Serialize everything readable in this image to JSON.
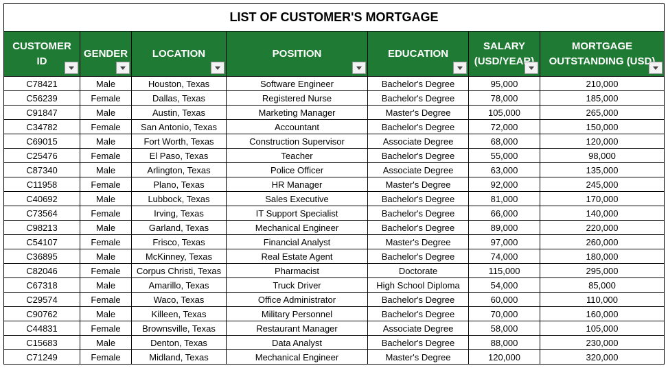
{
  "title": "LIST OF CUSTOMER'S MORTGAGE",
  "table": {
    "headers": [
      "CUSTOMER ID",
      "GENDER",
      "LOCATION",
      "POSITION",
      "EDUCATION",
      "SALARY (USD/YEAR)",
      "MORTGAGE OUTSTANDING (USD)"
    ],
    "rows": [
      [
        "C78421",
        "Male",
        "Houston, Texas",
        "Software Engineer",
        "Bachelor's Degree",
        "95,000",
        "210,000"
      ],
      [
        "C56239",
        "Female",
        "Dallas, Texas",
        "Registered Nurse",
        "Bachelor's Degree",
        "78,000",
        "185,000"
      ],
      [
        "C91847",
        "Male",
        "Austin, Texas",
        "Marketing Manager",
        "Master's Degree",
        "105,000",
        "265,000"
      ],
      [
        "C34782",
        "Female",
        "San Antonio, Texas",
        "Accountant",
        "Bachelor's Degree",
        "72,000",
        "150,000"
      ],
      [
        "C69015",
        "Male",
        "Fort Worth, Texas",
        "Construction Supervisor",
        "Associate Degree",
        "68,000",
        "120,000"
      ],
      [
        "C25476",
        "Female",
        "El Paso, Texas",
        "Teacher",
        "Bachelor's Degree",
        "55,000",
        "98,000"
      ],
      [
        "C87340",
        "Male",
        "Arlington, Texas",
        "Police Officer",
        "Associate Degree",
        "63,000",
        "135,000"
      ],
      [
        "C11958",
        "Female",
        "Plano, Texas",
        "HR Manager",
        "Master's Degree",
        "92,000",
        "245,000"
      ],
      [
        "C40692",
        "Male",
        "Lubbock, Texas",
        "Sales Executive",
        "Bachelor's Degree",
        "81,000",
        "170,000"
      ],
      [
        "C73564",
        "Female",
        "Irving, Texas",
        "IT Support Specialist",
        "Bachelor's Degree",
        "66,000",
        "140,000"
      ],
      [
        "C98213",
        "Male",
        "Garland, Texas",
        "Mechanical Engineer",
        "Bachelor's Degree",
        "89,000",
        "220,000"
      ],
      [
        "C54107",
        "Female",
        "Frisco, Texas",
        "Financial Analyst",
        "Master's Degree",
        "97,000",
        "260,000"
      ],
      [
        "C36895",
        "Male",
        "McKinney, Texas",
        "Real Estate Agent",
        "Bachelor's Degree",
        "74,000",
        "180,000"
      ],
      [
        "C82046",
        "Female",
        "Corpus Christi, Texas",
        "Pharmacist",
        "Doctorate",
        "115,000",
        "295,000"
      ],
      [
        "C67318",
        "Male",
        "Amarillo, Texas",
        "Truck Driver",
        "High School Diploma",
        "54,000",
        "85,000"
      ],
      [
        "C29574",
        "Female",
        "Waco, Texas",
        "Office Administrator",
        "Bachelor's Degree",
        "60,000",
        "110,000"
      ],
      [
        "C90762",
        "Male",
        "Killeen, Texas",
        "Military Personnel",
        "Bachelor's Degree",
        "70,000",
        "160,000"
      ],
      [
        "C44831",
        "Female",
        "Brownsville, Texas",
        "Restaurant Manager",
        "Associate Degree",
        "58,000",
        "105,000"
      ],
      [
        "C15683",
        "Male",
        "Denton, Texas",
        "Data Analyst",
        "Bachelor's Degree",
        "88,000",
        "230,000"
      ],
      [
        "C71249",
        "Female",
        "Midland, Texas",
        "Mechanical Engineer",
        "Master's Degree",
        "120,000",
        "320,000"
      ]
    ]
  }
}
